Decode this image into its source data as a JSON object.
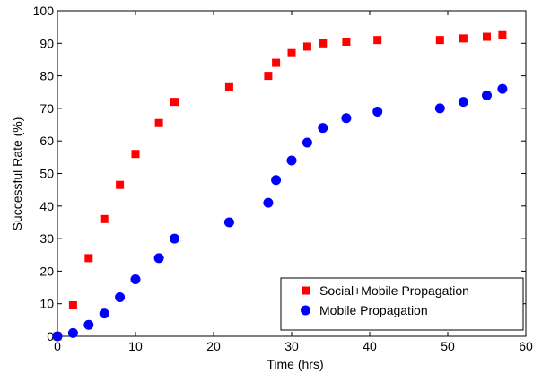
{
  "chart_data": {
    "type": "scatter",
    "xlabel": "Time (hrs)",
    "ylabel": "Successful Rate (%)",
    "xlim": [
      0,
      60
    ],
    "ylim": [
      0,
      100
    ],
    "xticks": [
      "0",
      "10",
      "20",
      "30",
      "40",
      "50",
      "60"
    ],
    "yticks": [
      "0",
      "10",
      "20",
      "30",
      "40",
      "50",
      "60",
      "70",
      "80",
      "90",
      "100"
    ],
    "grid": false,
    "legend_position": "bottom-right",
    "series": [
      {
        "name": "Social+Mobile Propagation",
        "marker": "square",
        "color": "#ff0000",
        "x": [
          0,
          2,
          4,
          6,
          8,
          10,
          13,
          15,
          22,
          27,
          28,
          30,
          32,
          34,
          37,
          41,
          49,
          52,
          55,
          57
        ],
        "y": [
          0,
          9.5,
          24,
          36,
          46.5,
          56,
          65.5,
          72,
          76.5,
          80,
          84,
          87,
          89,
          90,
          90.5,
          91,
          91,
          91.5,
          92,
          92.5
        ]
      },
      {
        "name": "Mobile Propagation",
        "marker": "circle",
        "color": "#0000ff",
        "x": [
          0,
          2,
          4,
          6,
          8,
          10,
          13,
          15,
          22,
          27,
          28,
          30,
          32,
          34,
          37,
          41,
          49,
          52,
          55,
          57
        ],
        "y": [
          0,
          1,
          3.5,
          7,
          12,
          17.5,
          24,
          30,
          35,
          41,
          48,
          54,
          59.5,
          64,
          67,
          69,
          70,
          72,
          74,
          76
        ]
      }
    ]
  }
}
